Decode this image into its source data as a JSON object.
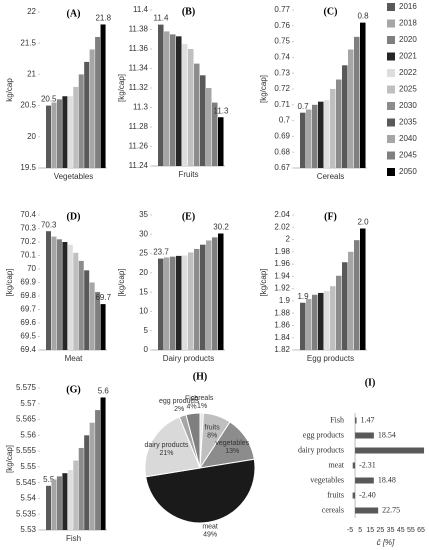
{
  "legend": {
    "series": [
      {
        "name": "2016",
        "color": "#595959"
      },
      {
        "name": "2018",
        "color": "#a6a6a6"
      },
      {
        "name": "2020",
        "color": "#7f7f7f"
      },
      {
        "name": "2021",
        "color": "#262626"
      },
      {
        "name": "2022",
        "color": "#dedede"
      },
      {
        "name": "2025",
        "color": "#bfbfbf"
      },
      {
        "name": "2030",
        "color": "#8c8c8c"
      },
      {
        "name": "2035",
        "color": "#595959"
      },
      {
        "name": "2040",
        "color": "#a6a6a6"
      },
      {
        "name": "2045",
        "color": "#7f7f7f"
      },
      {
        "name": "2050",
        "color": "#000000"
      }
    ]
  },
  "chart_data": [
    {
      "type": "bar",
      "title": "(A)",
      "xlabel": "Vegetables",
      "ylabel": "kg/cap",
      "values": [
        20.5,
        20.55,
        20.6,
        20.65,
        20.65,
        20.8,
        21.0,
        21.2,
        21.4,
        21.6,
        21.8
      ],
      "value_labels": [
        "20.5",
        null,
        null,
        null,
        null,
        null,
        null,
        null,
        null,
        null,
        "21.8"
      ],
      "ylim": [
        19.5,
        22
      ],
      "yticks": [
        19.5,
        20,
        20.5,
        21,
        21.5,
        22
      ]
    },
    {
      "type": "bar",
      "title": "(B)",
      "xlabel": "Fruits",
      "ylabel": "[kg/cap]",
      "values": [
        11.385,
        11.378,
        11.375,
        11.373,
        11.365,
        11.36,
        11.345,
        11.333,
        11.32,
        11.305,
        11.29
      ],
      "value_labels": [
        "11.4",
        null,
        null,
        null,
        null,
        null,
        null,
        null,
        null,
        null,
        "11.3"
      ],
      "ylim": [
        11.24,
        11.4
      ],
      "yticks": [
        11.24,
        11.26,
        11.28,
        11.3,
        11.32,
        11.34,
        11.36,
        11.38,
        11.4
      ]
    },
    {
      "type": "bar",
      "title": "(C)",
      "xlabel": "Cereals",
      "ylabel": "[kg/cap]",
      "values": [
        0.705,
        0.707,
        0.71,
        0.712,
        0.713,
        0.72,
        0.726,
        0.735,
        0.745,
        0.753,
        0.762
      ],
      "value_labels": [
        "0.7",
        null,
        null,
        null,
        null,
        null,
        null,
        null,
        null,
        null,
        "0.8"
      ],
      "ylim": [
        0.67,
        0.77
      ],
      "yticks": [
        0.67,
        0.68,
        0.69,
        0.7,
        0.71,
        0.72,
        0.73,
        0.74,
        0.75,
        0.76,
        0.77
      ]
    },
    {
      "type": "bar",
      "title": "(D)",
      "xlabel": "Meat",
      "ylabel": "[kg/cap]",
      "values": [
        70.28,
        70.24,
        70.22,
        70.2,
        70.18,
        70.12,
        70.06,
        69.99,
        69.9,
        69.83,
        69.74
      ],
      "value_labels": [
        "70.3",
        null,
        null,
        null,
        null,
        null,
        null,
        null,
        null,
        null,
        "69.7"
      ],
      "ylim": [
        69.4,
        70.4
      ],
      "yticks": [
        69.4,
        69.5,
        69.6,
        69.7,
        69.8,
        69.9,
        70,
        70.1,
        70.2,
        70.3,
        70.4
      ]
    },
    {
      "type": "bar",
      "title": "(E)",
      "xlabel": "Dairy products",
      "ylabel": "[kg/cap]",
      "values": [
        23.7,
        24.0,
        24.2,
        24.4,
        24.5,
        25.3,
        26.2,
        27.3,
        28.4,
        29.2,
        30.2
      ],
      "value_labels": [
        "23.7",
        null,
        null,
        null,
        null,
        null,
        null,
        null,
        null,
        null,
        "30.2"
      ],
      "ylim": [
        0,
        35
      ],
      "yticks": [
        0,
        5,
        10,
        15,
        20,
        25,
        30,
        35
      ]
    },
    {
      "type": "bar",
      "title": "(F)",
      "xlabel": "Egg products",
      "ylabel": "[kg/cap]",
      "values": [
        1.897,
        1.903,
        1.91,
        1.913,
        1.916,
        1.924,
        1.941,
        1.963,
        1.98,
        1.999,
        2.018
      ],
      "value_labels": [
        "1.9",
        null,
        null,
        null,
        null,
        null,
        null,
        null,
        null,
        null,
        "2.0"
      ],
      "ylim": [
        1.82,
        2.04
      ],
      "yticks": [
        1.82,
        1.84,
        1.86,
        1.88,
        1.9,
        1.92,
        1.94,
        1.96,
        1.98,
        2,
        2.02,
        2.04
      ]
    },
    {
      "type": "bar",
      "title": "(G)",
      "xlabel": "Fish",
      "ylabel": "[kg/cap]",
      "values": [
        5.544,
        5.546,
        5.547,
        5.548,
        5.549,
        5.552,
        5.556,
        5.56,
        5.564,
        5.568,
        5.572
      ],
      "value_labels": [
        "5.5",
        null,
        null,
        null,
        null,
        null,
        null,
        null,
        null,
        null,
        "5.6"
      ],
      "ylim": [
        5.53,
        5.575
      ],
      "yticks": [
        5.53,
        5.535,
        5.54,
        5.545,
        5.55,
        5.555,
        5.56,
        5.565,
        5.57,
        5.575
      ]
    },
    {
      "type": "pie",
      "title": "(H)",
      "categories": [
        "cereals",
        "fruits",
        "vegetables",
        "meat",
        "dairy products",
        "egg products",
        "Fish"
      ],
      "values": [
        1,
        8,
        13,
        49,
        21,
        2,
        4
      ],
      "value_labels": [
        "1%",
        "8%",
        "13%",
        "49%",
        "21%",
        "2%",
        "4%"
      ],
      "colors": [
        "#e6e6e6",
        "#bfbfbf",
        "#8c8c8c",
        "#1a1a1a",
        "#d9d9d9",
        "#a6a6a6",
        "#7f7f7f"
      ]
    },
    {
      "type": "hbar",
      "title": "(I)",
      "xlabel": "c̄ [%]",
      "color": "#595959",
      "categories": [
        "Fish",
        "egg products",
        "dairy products",
        "meat",
        "vegetables",
        "fruits",
        "cereals"
      ],
      "values": [
        1.47,
        18.54,
        68,
        -2.31,
        18.48,
        -2.4,
        22.75
      ],
      "value_labels": [
        "1.47",
        "18.54",
        null,
        "-2.31",
        "18.48",
        "-2.40",
        "22.75"
      ],
      "xlim": [
        -5,
        65
      ],
      "xticks": [
        -5,
        5,
        15,
        25,
        35,
        45,
        55,
        65
      ]
    }
  ]
}
